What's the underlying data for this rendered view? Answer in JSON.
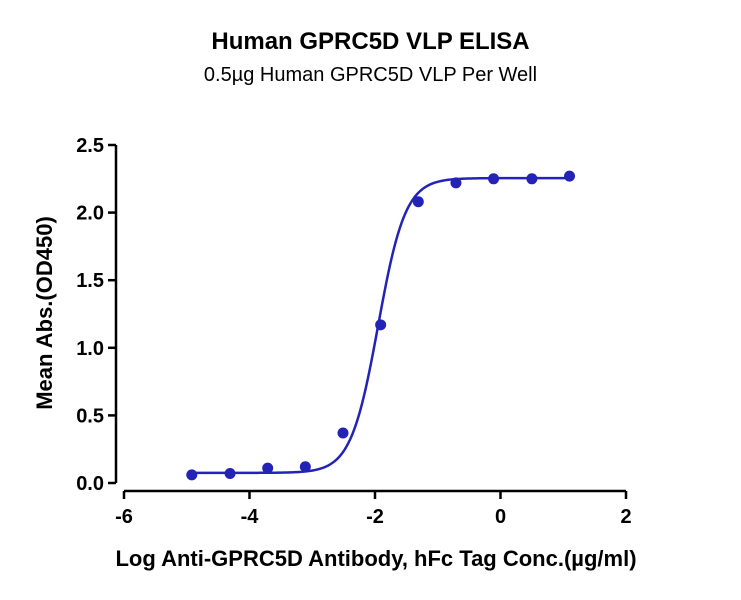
{
  "chart_data": {
    "type": "scatter",
    "title": "Human GPRC5D VLP ELISA",
    "subtitle": "0.5µg Human GPRC5D VLP Per Well",
    "xlabel": "Log Anti-GPRC5D Antibody, hFc Tag Conc.(µg/ml)",
    "ylabel": "Mean Abs.(OD450)",
    "xlim": [
      -6,
      2
    ],
    "ylim": [
      0,
      2.5
    ],
    "xticks": [
      -6,
      -4,
      -2,
      0,
      2
    ],
    "yticks": [
      0.0,
      0.5,
      1.0,
      1.5,
      2.0,
      2.5
    ],
    "xtick_labels": [
      "-6",
      "-4",
      "-2",
      "0",
      "2"
    ],
    "ytick_labels": [
      "0.0",
      "0.5",
      "1.0",
      "1.5",
      "2.0",
      "2.5"
    ],
    "grid": false,
    "series": [
      {
        "color": "#2323b8",
        "x": [
          -4.92,
          -4.31,
          -3.71,
          -3.11,
          -2.51,
          -1.91,
          -1.31,
          -0.71,
          -0.11,
          0.5,
          1.1
        ],
        "y": [
          0.06,
          0.07,
          0.11,
          0.12,
          0.37,
          1.17,
          2.08,
          2.22,
          2.25,
          2.25,
          2.27
        ]
      }
    ],
    "fit_curve": {
      "model": "4PL",
      "bottom": 0.075,
      "top": 2.255,
      "log_ec50": -1.95,
      "hill_slope": 2.0,
      "color": "#2323b8"
    }
  }
}
